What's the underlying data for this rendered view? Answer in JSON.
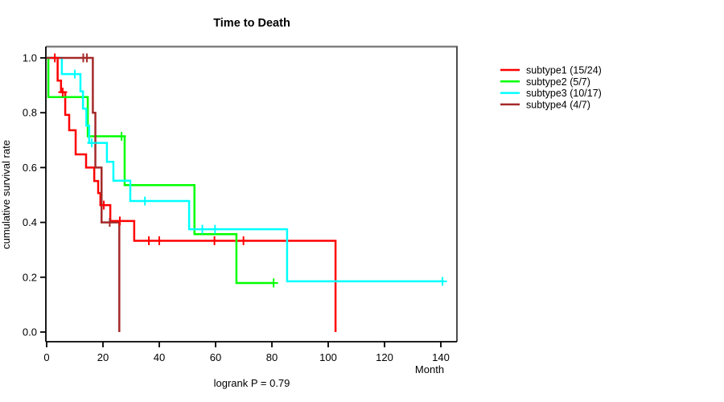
{
  "title": "Time to Death",
  "subtitle": "logrank P = 0.79",
  "x_axis": {
    "label": "Month",
    "ticks": [
      0,
      20,
      40,
      60,
      80,
      100,
      120,
      140
    ]
  },
  "y_axis": {
    "label": "cumulative survival rate",
    "ticks": [
      "0.0",
      "0.2",
      "0.4",
      "0.6",
      "0.8",
      "1.0"
    ]
  },
  "legend": {
    "position": "right",
    "items": [
      {
        "label": "subtype1 (15/24)",
        "color": "#FF0000"
      },
      {
        "label": "subtype2 (5/7)",
        "color": "#00FF00"
      },
      {
        "label": "subtype3 (10/17)",
        "color": "#00FFFF"
      },
      {
        "label": "subtype4 (4/7)",
        "color": "#A52A2A"
      }
    ]
  },
  "chart_data": {
    "type": "line",
    "subtype": "kaplan-meier-step",
    "title": "Time to Death",
    "xlabel": "Month",
    "ylabel": "cumulative survival rate",
    "annotation": "logrank P = 0.79",
    "xlim": [
      0,
      145
    ],
    "ylim": [
      0.0,
      1.0
    ],
    "grid": false,
    "legend_position": "right",
    "series": [
      {
        "name": "subtype1 (15/24)",
        "color": "#FF0000",
        "points": [
          [
            0,
            1.0
          ],
          [
            3.9,
            0.917
          ],
          [
            5.1,
            0.875
          ],
          [
            6.6,
            0.792
          ],
          [
            8.0,
            0.736
          ],
          [
            10.3,
            0.648
          ],
          [
            14.0,
            0.6
          ],
          [
            16.9,
            0.551
          ],
          [
            18.3,
            0.507
          ],
          [
            19.1,
            0.463
          ],
          [
            22.6,
            0.405
          ],
          [
            31.1,
            0.333
          ],
          [
            102.6,
            0.0
          ]
        ],
        "censors": [
          [
            2.9,
            1.0
          ],
          [
            5.7,
            0.875
          ],
          [
            20.3,
            0.463
          ],
          [
            26.0,
            0.405
          ],
          [
            36.3,
            0.333
          ],
          [
            40.0,
            0.333
          ],
          [
            59.6,
            0.333
          ],
          [
            69.9,
            0.333
          ]
        ],
        "tail_t": 102.6
      },
      {
        "name": "subtype2 (5/7)",
        "color": "#00FF00",
        "points": [
          [
            0,
            1.0
          ],
          [
            0.6,
            0.857
          ],
          [
            14.6,
            0.714
          ],
          [
            27.7,
            0.536
          ],
          [
            52.5,
            0.357
          ],
          [
            67.4,
            0.179
          ]
        ],
        "censors": [
          [
            26.6,
            0.714
          ],
          [
            80.6,
            0.179
          ]
        ],
        "tail_t": 80.9
      },
      {
        "name": "subtype3 (10/17)",
        "color": "#00FFFF",
        "points": [
          [
            0,
            1.0
          ],
          [
            5.4,
            0.941
          ],
          [
            12.0,
            0.878
          ],
          [
            12.9,
            0.815
          ],
          [
            14.1,
            0.753
          ],
          [
            15.1,
            0.69
          ],
          [
            21.4,
            0.621
          ],
          [
            23.7,
            0.552
          ],
          [
            29.7,
            0.478
          ],
          [
            50.6,
            0.375
          ],
          [
            85.4,
            0.185
          ]
        ],
        "censors": [
          [
            10.0,
            0.941
          ],
          [
            16.0,
            0.69
          ],
          [
            34.9,
            0.478
          ],
          [
            55.3,
            0.375
          ],
          [
            59.8,
            0.375
          ],
          [
            140.6,
            0.185
          ]
        ],
        "tail_t": 141.0
      },
      {
        "name": "subtype4 (4/7)",
        "color": "#A52A2A",
        "points": [
          [
            0,
            1.0
          ],
          [
            16.4,
            0.8
          ],
          [
            17.3,
            0.6
          ],
          [
            19.5,
            0.4
          ],
          [
            25.8,
            0.0
          ]
        ],
        "censors": [
          [
            13.0,
            1.0
          ],
          [
            14.3,
            1.0
          ],
          [
            22.4,
            0.4
          ]
        ],
        "tail_t": 25.8
      }
    ]
  }
}
